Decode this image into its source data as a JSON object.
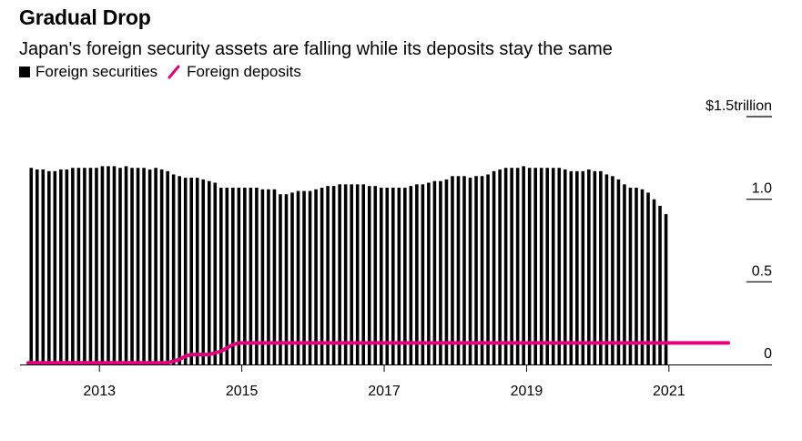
{
  "title": "Gradual Drop",
  "subtitle": "Japan's foreign security assets are falling while its deposits stay the same",
  "legend": [
    {
      "label": "Foreign securities",
      "color": "#000000",
      "shape": "square"
    },
    {
      "label": "Foreign deposits",
      "color": "#e6007e",
      "shape": "line"
    }
  ],
  "chart_data": {
    "type": "bar",
    "y_unit_label": "$1.5trillion",
    "ylim": [
      0,
      1.5
    ],
    "yticks": [
      {
        "value": 1.5,
        "label": "$1.5trillion"
      },
      {
        "value": 1.0,
        "label": "1.0"
      },
      {
        "value": 0.5,
        "label": "0.5"
      },
      {
        "value": 0,
        "label": "0"
      }
    ],
    "x_start": "2012-01",
    "x_end": "2021-10",
    "xticks": [
      "2013",
      "2015",
      "2017",
      "2019",
      "2021"
    ],
    "grid": false,
    "legend_position": "top-left",
    "series": [
      {
        "name": "Foreign securities",
        "type": "bar",
        "color": "#000000",
        "values": [
          1.19,
          1.18,
          1.18,
          1.17,
          1.17,
          1.18,
          1.18,
          1.19,
          1.19,
          1.19,
          1.19,
          1.19,
          1.2,
          1.2,
          1.2,
          1.19,
          1.2,
          1.19,
          1.19,
          1.19,
          1.18,
          1.19,
          1.18,
          1.17,
          1.15,
          1.14,
          1.13,
          1.13,
          1.13,
          1.12,
          1.11,
          1.1,
          1.07,
          1.07,
          1.07,
          1.07,
          1.07,
          1.07,
          1.07,
          1.06,
          1.06,
          1.06,
          1.03,
          1.03,
          1.04,
          1.05,
          1.05,
          1.05,
          1.06,
          1.07,
          1.08,
          1.08,
          1.09,
          1.09,
          1.09,
          1.09,
          1.09,
          1.08,
          1.08,
          1.07,
          1.07,
          1.07,
          1.07,
          1.07,
          1.08,
          1.09,
          1.09,
          1.1,
          1.11,
          1.11,
          1.12,
          1.14,
          1.14,
          1.14,
          1.13,
          1.14,
          1.14,
          1.15,
          1.17,
          1.18,
          1.19,
          1.19,
          1.19,
          1.2,
          1.19,
          1.19,
          1.19,
          1.19,
          1.19,
          1.19,
          1.18,
          1.17,
          1.17,
          1.17,
          1.18,
          1.17,
          1.17,
          1.15,
          1.14,
          1.12,
          1.09,
          1.07,
          1.07,
          1.06,
          1.04,
          1.0,
          0.96,
          0.91
        ]
      },
      {
        "name": "Foreign deposits",
        "type": "line",
        "color": "#e6007e",
        "values": [
          0.01,
          0.01,
          0.01,
          0.01,
          0.01,
          0.01,
          0.01,
          0.01,
          0.01,
          0.01,
          0.01,
          0.01,
          0.01,
          0.01,
          0.01,
          0.01,
          0.01,
          0.01,
          0.01,
          0.01,
          0.01,
          0.01,
          0.01,
          0.01,
          0.02,
          0.03,
          0.05,
          0.06,
          0.06,
          0.06,
          0.06,
          0.07,
          0.08,
          0.1,
          0.12,
          0.13,
          0.13,
          0.13,
          0.13,
          0.13,
          0.13,
          0.13,
          0.13,
          0.13,
          0.13,
          0.13,
          0.13,
          0.13,
          0.13,
          0.13,
          0.13,
          0.13,
          0.13,
          0.13,
          0.13,
          0.13,
          0.13,
          0.13,
          0.13,
          0.13,
          0.13,
          0.13,
          0.13,
          0.13,
          0.13,
          0.13,
          0.13,
          0.13,
          0.13,
          0.13,
          0.13,
          0.13,
          0.13,
          0.13,
          0.13,
          0.13,
          0.13,
          0.13,
          0.13,
          0.13,
          0.13,
          0.13,
          0.13,
          0.13,
          0.13,
          0.13,
          0.13,
          0.13,
          0.13,
          0.13,
          0.13,
          0.13,
          0.13,
          0.13,
          0.13,
          0.13,
          0.13,
          0.13,
          0.13,
          0.13,
          0.13,
          0.13,
          0.13,
          0.13,
          0.13,
          0.13,
          0.13,
          0.13
        ]
      }
    ]
  }
}
